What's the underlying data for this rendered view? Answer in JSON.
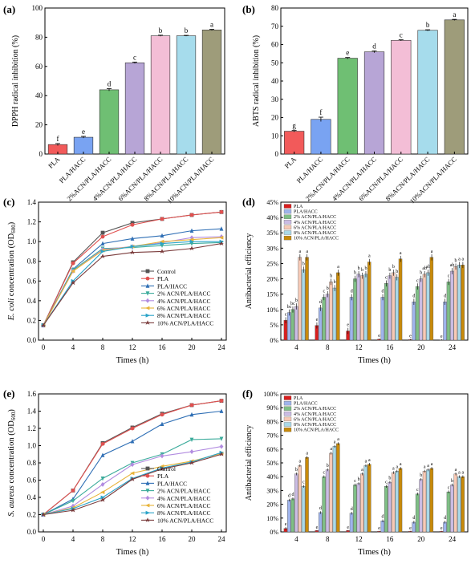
{
  "figure": {
    "panels": [
      "(a)",
      "(b)",
      "(c)",
      "(d)",
      "(e)",
      "(f)"
    ]
  },
  "chart_data": [
    {
      "panel": "(a)",
      "type": "bar",
      "ylabel": "DPPH radical inhibition (%)",
      "ylim": [
        0,
        100
      ],
      "yticks": [
        0,
        20,
        40,
        60,
        80,
        100
      ],
      "categories": [
        "PLA",
        "PLA/HACC",
        "2%ACN/PLA/HACC",
        "4%ACN/PLA/HACC",
        "6%ACN/PLA/HACC",
        "8%ACN/PLA/HACC",
        "10%ACN/PLA/HACC"
      ],
      "values": [
        6.5,
        11.5,
        44,
        62.5,
        81,
        81,
        85
      ],
      "errors": [
        0.7,
        0.6,
        0.8,
        0.5,
        0.4,
        0.3,
        0.4
      ],
      "letters": [
        "f",
        "e",
        "d",
        "c",
        "b",
        "b",
        "a"
      ],
      "colors": [
        "#f25a5a",
        "#79a3f2",
        "#6fbf73",
        "#b7a5d6",
        "#f3bed6",
        "#a6dcec",
        "#9e9c7a"
      ]
    },
    {
      "panel": "(b)",
      "type": "bar",
      "ylabel": "ABTS radical inhibition (%)",
      "ylim": [
        0,
        80
      ],
      "yticks": [
        0,
        10,
        20,
        30,
        40,
        50,
        60,
        70,
        80
      ],
      "categories": [
        "PLA",
        "PLA/HACC",
        "2%ACN/PLA/HACC",
        "4%ACN/PLA/HACC",
        "6%ACN/PLA/HACC",
        "8%ACN/PLA/HACC",
        "10%ACN/PLA/HACC"
      ],
      "values": [
        12.5,
        19,
        52.5,
        56,
        62.3,
        67.8,
        73.5
      ],
      "errors": [
        0.4,
        1.2,
        0.4,
        0.5,
        0.3,
        0.3,
        0.3
      ],
      "letters": [
        "g",
        "f",
        "e",
        "d",
        "c",
        "b",
        "a"
      ],
      "colors": [
        "#f25a5a",
        "#79a3f2",
        "#6fbf73",
        "#b7a5d6",
        "#f3bed6",
        "#a6dcec",
        "#9e9c7a"
      ]
    },
    {
      "panel": "(c)",
      "type": "line",
      "ylabel": "E. coli concentration (OD600)",
      "ylabel_parts": {
        "italic": "E. coli",
        "rest": " concentration (OD",
        "sub": "600",
        "close": ")"
      },
      "xlabel": "Times (h)",
      "xlim": [
        0,
        24
      ],
      "ylim": [
        0,
        1.4
      ],
      "xticks": [
        0,
        4,
        8,
        12,
        16,
        20,
        24
      ],
      "yticks": [
        "0.0",
        "0.2",
        "0.4",
        "0.6",
        "0.8",
        "1.0",
        "1.2",
        "1.4"
      ],
      "x": [
        0,
        4,
        8,
        12,
        16,
        20,
        24
      ],
      "series": [
        {
          "name": "Control",
          "color": "#555555",
          "values": [
            0.15,
            0.79,
            1.09,
            1.19,
            1.23,
            1.27,
            1.3
          ]
        },
        {
          "name": "PLA",
          "color": "#e0504f",
          "values": [
            0.15,
            0.78,
            1.05,
            1.17,
            1.23,
            1.27,
            1.3
          ]
        },
        {
          "name": "PLA/HACC",
          "color": "#2f6fb5",
          "values": [
            0.15,
            0.72,
            0.98,
            1.03,
            1.06,
            1.11,
            1.13
          ]
        },
        {
          "name": "2% ACN/PLA/HACC",
          "color": "#3bab9b",
          "values": [
            0.15,
            0.71,
            0.93,
            0.94,
            0.96,
            0.98,
            0.99
          ]
        },
        {
          "name": "4% ACN/PLA/HACC",
          "color": "#b28ce0",
          "values": [
            0.15,
            0.7,
            0.92,
            0.95,
            0.99,
            1.04,
            1.05
          ]
        },
        {
          "name": "6% ACN/PLA/HACC",
          "color": "#e8b43a",
          "values": [
            0.15,
            0.7,
            0.91,
            0.95,
            1.0,
            1.02,
            1.04
          ]
        },
        {
          "name": "8% ACN/PLA/HACC",
          "color": "#2aa3c8",
          "values": [
            0.15,
            0.6,
            0.9,
            0.95,
            0.98,
            1.0,
            1.0
          ]
        },
        {
          "name": "10% ACN/PLA/HACC",
          "color": "#7a3b3b",
          "values": [
            0.15,
            0.58,
            0.85,
            0.89,
            0.9,
            0.93,
            0.98
          ]
        }
      ]
    },
    {
      "panel": "(d)",
      "type": "bar",
      "ylabel": "Antibacterial efficiency",
      "xlabel": "Times (h)",
      "ylim": [
        0,
        45
      ],
      "yticks": [
        "0%",
        "5%",
        "10%",
        "15%",
        "20%",
        "25%",
        "30%",
        "35%",
        "40%",
        "45%"
      ],
      "categories": [
        "4",
        "8",
        "12",
        "16",
        "20",
        "24"
      ],
      "series": [
        {
          "name": "PLA",
          "color": "#d91e1e",
          "values": [
            6.5,
            4.8,
            3.0,
            0.3,
            0.2,
            0.1
          ]
        },
        {
          "name": "PLA/HACC",
          "color": "#9fb4ec",
          "values": [
            9.0,
            10.5,
            14.0,
            14.0,
            12.5,
            12.5
          ]
        },
        {
          "name": "2% ACN/PLA/HACC",
          "color": "#7fbf86",
          "values": [
            10.0,
            14.0,
            20.0,
            18.5,
            17.5,
            19.0
          ]
        },
        {
          "name": "4% ACN/PLA/HACC",
          "color": "#cbbce4",
          "values": [
            11.0,
            15.0,
            21.5,
            21.0,
            20.0,
            22.5
          ]
        },
        {
          "name": "6% ACN/PLA/HACC",
          "color": "#f7c9b5",
          "values": [
            27.0,
            19.0,
            21.0,
            22.0,
            21.5,
            24.0
          ]
        },
        {
          "name": "8% ACN/PLA/HACC",
          "color": "#a9d9e8",
          "values": [
            23.0,
            17.0,
            21.5,
            20.5,
            22.0,
            24.5
          ]
        },
        {
          "name": "10% ACN/PLA/HACC",
          "color": "#c88a0a",
          "values": [
            27.0,
            22.0,
            25.5,
            26.5,
            27.0,
            24.5
          ]
        }
      ],
      "letters": [
        [
          "c",
          "bc",
          "bc",
          "b",
          "a",
          "b",
          "a"
        ],
        [
          "e",
          "d",
          "c",
          "b",
          "b",
          "b",
          "a"
        ],
        [
          "e",
          "d",
          "b",
          "b",
          "b",
          "b",
          "a"
        ],
        [
          "e",
          "d",
          "c",
          "b",
          "b",
          "b",
          "a"
        ],
        [
          "e",
          "d",
          "c",
          "b",
          "ab",
          "ab",
          "a"
        ],
        [
          "e",
          "d",
          "c",
          "ab",
          "b",
          "a",
          "a"
        ]
      ]
    },
    {
      "panel": "(e)",
      "type": "line",
      "ylabel": "S. aureus concentration (OD600)",
      "ylabel_parts": {
        "italic": "S. aureus",
        "rest": " concentration (OD",
        "sub": "600",
        "close": ")"
      },
      "xlabel": "Times (h)",
      "xlim": [
        0,
        24
      ],
      "ylim": [
        0,
        1.6
      ],
      "xticks": [
        0,
        4,
        8,
        12,
        16,
        20,
        24
      ],
      "yticks": [
        "0.0",
        "0.2",
        "0.4",
        "0.6",
        "0.8",
        "1.0",
        "1.2",
        "1.4",
        "1.6"
      ],
      "x": [
        0,
        4,
        8,
        12,
        16,
        20,
        24
      ],
      "series": [
        {
          "name": "Control",
          "color": "#555555",
          "values": [
            0.2,
            0.48,
            1.03,
            1.21,
            1.37,
            1.47,
            1.52
          ]
        },
        {
          "name": "PLA",
          "color": "#e0504f",
          "values": [
            0.2,
            0.48,
            1.02,
            1.2,
            1.36,
            1.47,
            1.52
          ]
        },
        {
          "name": "PLA/HACC",
          "color": "#2f6fb5",
          "values": [
            0.2,
            0.38,
            0.89,
            1.05,
            1.25,
            1.36,
            1.4
          ]
        },
        {
          "name": "2% ACN/PLA/HACC",
          "color": "#3bab9b",
          "values": [
            0.2,
            0.36,
            0.62,
            0.8,
            0.9,
            1.07,
            1.08
          ]
        },
        {
          "name": "4% ACN/PLA/HACC",
          "color": "#b28ce0",
          "values": [
            0.2,
            0.3,
            0.55,
            0.78,
            0.88,
            0.93,
            0.99
          ]
        },
        {
          "name": "6% ACN/PLA/HACC",
          "color": "#e8b43a",
          "values": [
            0.2,
            0.28,
            0.46,
            0.68,
            0.76,
            0.82,
            0.91
          ]
        },
        {
          "name": "8% ACN/PLA/HACC",
          "color": "#2aa3c8",
          "values": [
            0.2,
            0.27,
            0.4,
            0.62,
            0.74,
            0.81,
            0.92
          ]
        },
        {
          "name": "10% ACN/PLA/HACC",
          "color": "#7a3b3b",
          "values": [
            0.2,
            0.25,
            0.37,
            0.61,
            0.73,
            0.8,
            0.9
          ]
        }
      ]
    },
    {
      "panel": "(f)",
      "type": "bar",
      "ylabel": "Antibacterial efficiency",
      "xlabel": "Times (h)",
      "ylim": [
        0,
        100
      ],
      "yticks": [
        "0%",
        "10%",
        "20%",
        "30%",
        "40%",
        "50%",
        "60%",
        "70%",
        "80%",
        "90%",
        "100%"
      ],
      "categories": [
        "4",
        "8",
        "12",
        "16",
        "20",
        "24"
      ],
      "series": [
        {
          "name": "PLA",
          "color": "#d91e1e",
          "values": [
            2.5,
            1.0,
            1.0,
            0.5,
            0.5,
            0.5
          ]
        },
        {
          "name": "PLA/HACC",
          "color": "#9fb4ec",
          "values": [
            23.0,
            14.0,
            13.5,
            8.0,
            7.0,
            7.0
          ]
        },
        {
          "name": "2% ACN/PLA/HACC",
          "color": "#7fbf86",
          "values": [
            24.0,
            40.0,
            34.0,
            33.0,
            27.5,
            29.0
          ]
        },
        {
          "name": "4% ACN/PLA/HACC",
          "color": "#cbbce4",
          "values": [
            42.0,
            45.0,
            35.0,
            36.0,
            38.0,
            34.0
          ]
        },
        {
          "name": "6% ACN/PLA/HACC",
          "color": "#f7c9b5",
          "values": [
            48.0,
            57.0,
            42.0,
            43.0,
            44.0,
            42.0
          ]
        },
        {
          "name": "8% ACN/PLA/HACC",
          "color": "#a9d9e8",
          "values": [
            33.0,
            62.0,
            48.0,
            44.0,
            45.0,
            40.0
          ]
        },
        {
          "name": "10% ACN/PLA/HACC",
          "color": "#c88a0a",
          "values": [
            54.0,
            64.0,
            49.0,
            46.0,
            46.0,
            40.0
          ]
        }
      ],
      "letters": [
        [
          "e",
          "d",
          "d",
          "b",
          "a",
          "c",
          "a"
        ],
        [
          "e",
          "d",
          "c",
          "b",
          "a",
          "a",
          "a"
        ],
        [
          "e",
          "d",
          "c",
          "b",
          "a",
          "a",
          "a"
        ],
        [
          "e",
          "d",
          "c",
          "b",
          "a",
          "a",
          "a"
        ],
        [
          "e",
          "d",
          "c",
          "b",
          "a",
          "a",
          "a"
        ],
        [
          "e",
          "d",
          "c",
          "b",
          "a",
          "a",
          "a"
        ]
      ]
    }
  ]
}
